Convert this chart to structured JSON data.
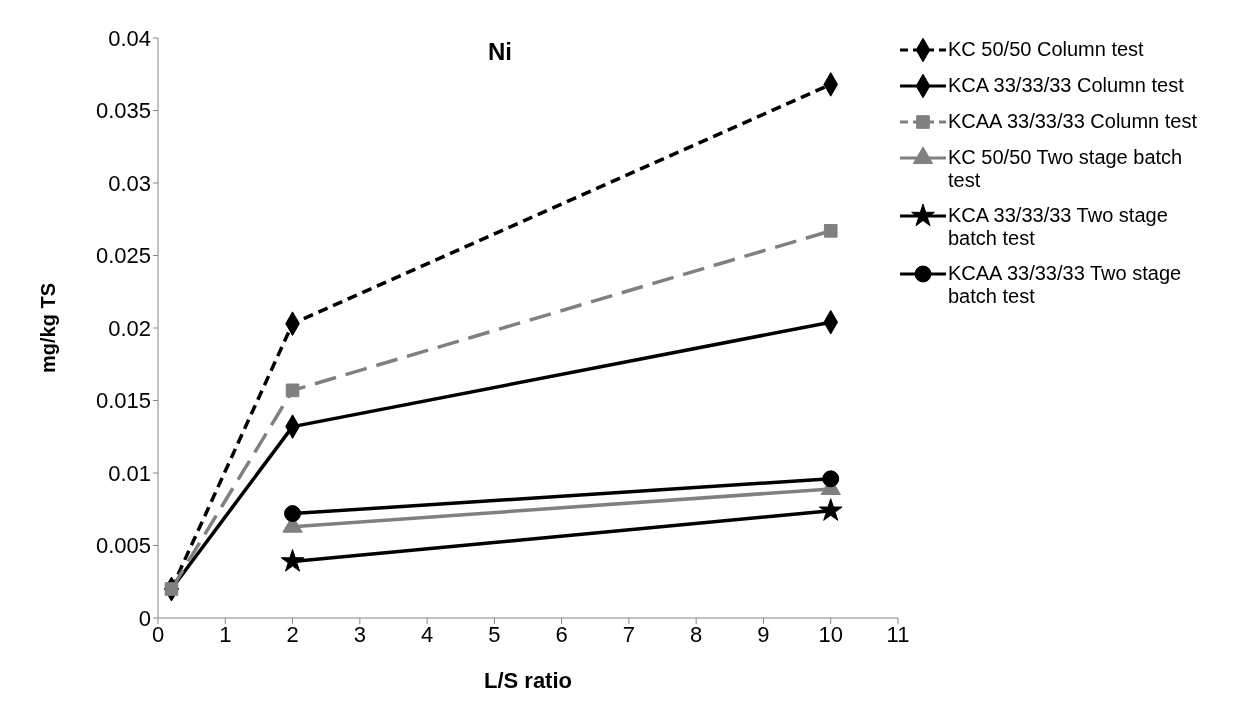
{
  "chart_data": {
    "type": "line",
    "title": "Ni",
    "xlabel": "L/S ratio",
    "ylabel": "mg/kg TS",
    "xlim": [
      0,
      11
    ],
    "xticks": [
      0,
      1,
      2,
      3,
      4,
      5,
      6,
      7,
      8,
      9,
      10,
      11
    ],
    "ylim": [
      0,
      0.04
    ],
    "yticks": [
      0,
      0.005,
      0.01,
      0.015,
      0.02,
      0.025,
      0.03,
      0.035,
      0.04
    ],
    "grid": false,
    "legend": "right",
    "series": [
      {
        "name": "KC 50/50 Column test",
        "color": "#000000",
        "x": [
          0.2,
          2,
          10
        ],
        "values": [
          0.002,
          0.0203,
          0.0368
        ],
        "marker": "diamond",
        "line_style": "dashed"
      },
      {
        "name": "KCA 33/33/33 Column test",
        "color": "#000000",
        "x": [
          0.2,
          2,
          10
        ],
        "values": [
          0.002,
          0.0132,
          0.0204
        ],
        "marker": "diamond",
        "line_style": "solid"
      },
      {
        "name": "KCAA 33/33/33 Column test",
        "color": "#808080",
        "x": [
          0.2,
          2,
          10
        ],
        "values": [
          0.002,
          0.0157,
          0.0267
        ],
        "marker": "square",
        "line_style": "dashed"
      },
      {
        "name": "KC 50/50 Two stage batch test",
        "color": "#808080",
        "x": [
          2,
          10
        ],
        "values": [
          0.0063,
          0.0089
        ],
        "marker": "triangle",
        "line_style": "solid"
      },
      {
        "name": "KCA 33/33/33 Two stage batch test",
        "color": "#000000",
        "x": [
          2,
          10
        ],
        "values": [
          0.0039,
          0.0074
        ],
        "marker": "star",
        "line_style": "solid"
      },
      {
        "name": "KCAA 33/33/33 Two stage batch test",
        "color": "#000000",
        "x": [
          2,
          10
        ],
        "values": [
          0.0072,
          0.0096
        ],
        "marker": "circle",
        "line_style": "solid"
      }
    ]
  }
}
